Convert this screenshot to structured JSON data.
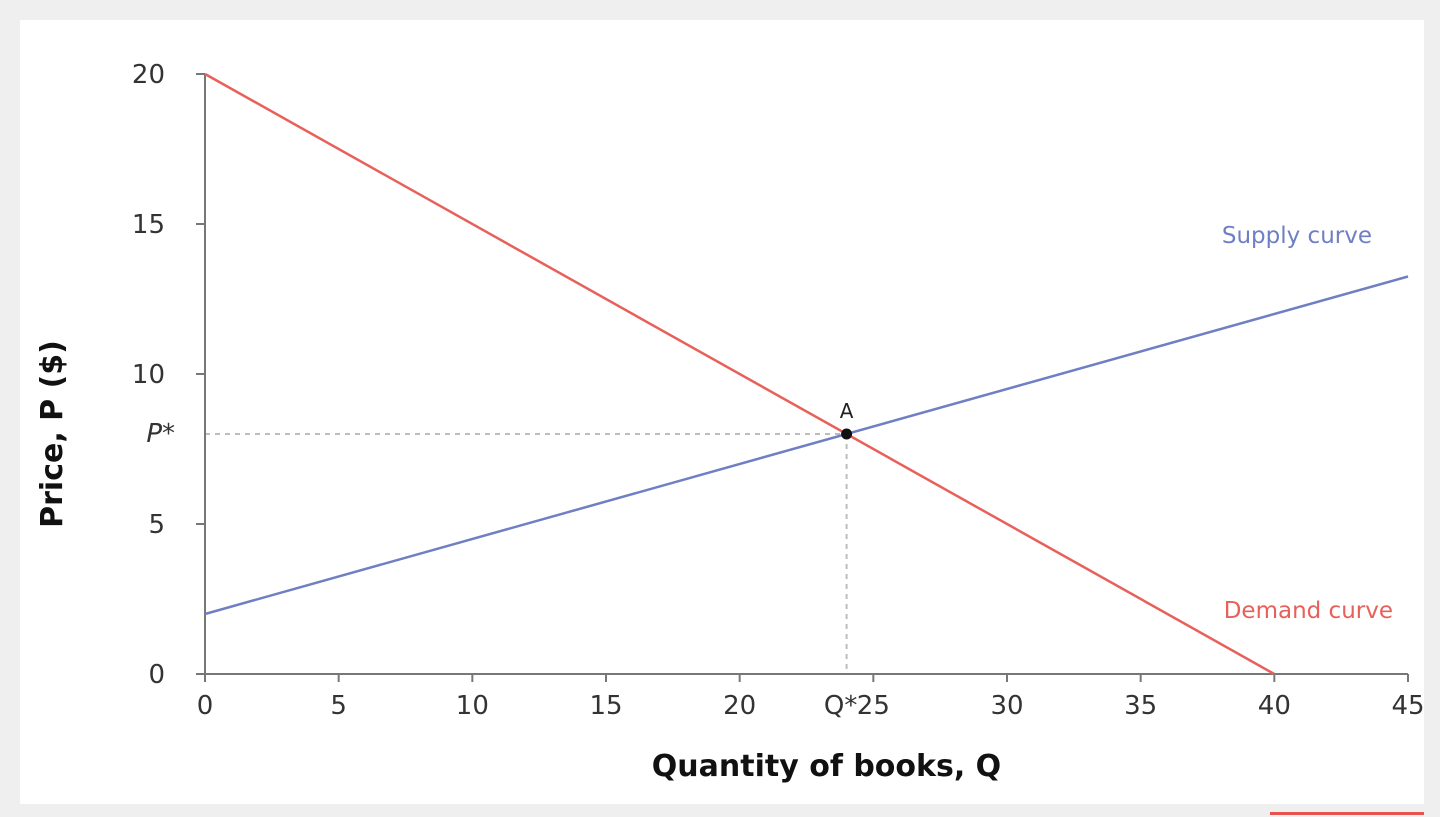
{
  "chart_data": {
    "type": "line",
    "xlabel": "Quantity of books, Q",
    "ylabel": "Price, P ($)",
    "xlim": [
      0,
      45
    ],
    "ylim": [
      0,
      20
    ],
    "x_ticks": [
      0,
      5,
      10,
      15,
      20,
      25,
      30,
      35,
      40,
      45
    ],
    "y_ticks": [
      0,
      5,
      10,
      15,
      20
    ],
    "series": [
      {
        "name": "Demand curve",
        "x": [
          0,
          40
        ],
        "y": [
          20,
          0
        ],
        "color": "#e8605a"
      },
      {
        "name": "Supply curve",
        "x": [
          0,
          45
        ],
        "y": [
          2,
          13.25
        ],
        "color": "#6f7fc4"
      }
    ],
    "equilibrium": {
      "label": "A",
      "q": 24,
      "p": 8,
      "q_label": "Q*",
      "p_label": "P*"
    },
    "grid": false,
    "legend": "inline"
  }
}
